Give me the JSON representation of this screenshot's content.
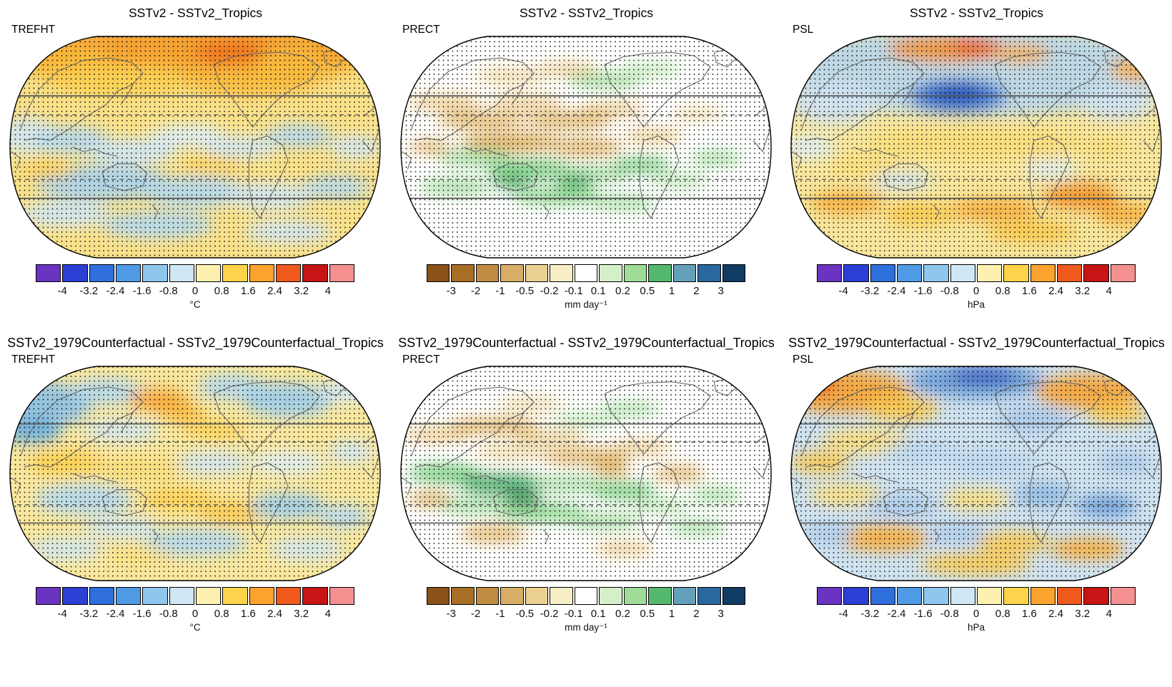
{
  "rows": [
    {
      "panels": [
        {
          "title": "SSTv2 - SSTv2_Tropics",
          "variable": "TREFHT",
          "colorbar": "temp"
        },
        {
          "title": "SSTv2 - SSTv2_Tropics",
          "variable": "PRECT",
          "colorbar": "precip"
        },
        {
          "title": "SSTv2 - SSTv2_Tropics",
          "variable": "PSL",
          "colorbar": "psl"
        }
      ]
    },
    {
      "panels": [
        {
          "title": "SSTv2_1979Counterfactual - SSTv2_1979Counterfactual_Tropics",
          "variable": "TREFHT",
          "colorbar": "temp"
        },
        {
          "title": "SSTv2_1979Counterfactual - SSTv2_1979Counterfactual_Tropics",
          "variable": "PRECT",
          "colorbar": "precip"
        },
        {
          "title": "SSTv2_1979Counterfactual - SSTv2_1979Counterfactual_Tropics",
          "variable": "PSL",
          "colorbar": "psl"
        }
      ]
    }
  ],
  "colorbars": {
    "temp": {
      "unit": "°C",
      "colors": [
        "#6a33c2",
        "#2b3fd4",
        "#2f6fdd",
        "#4f9be6",
        "#8ec6ee",
        "#cfe6f4",
        "#fdf0b0",
        "#fcd34a",
        "#fba32e",
        "#ef5a1c",
        "#c81414",
        "#f49090"
      ],
      "ticks": [
        "-4",
        "-3.2",
        "-2.4",
        "-1.6",
        "-0.8",
        "0",
        "0.8",
        "1.6",
        "2.4",
        "3.2",
        "4"
      ]
    },
    "precip": {
      "unit": "mm day⁻¹",
      "colors": [
        "#8a5118",
        "#a86e24",
        "#c08c42",
        "#d8ae66",
        "#ecd092",
        "#f8eec6",
        "#ffffff",
        "#d4f0c8",
        "#9edc98",
        "#54b96e",
        "#64a0ba",
        "#2a66a0",
        "#103c64"
      ],
      "ticks": [
        "-3",
        "-2",
        "-1",
        "-0.5",
        "-0.2",
        "-0.1",
        "0.1",
        "0.2",
        "0.5",
        "1",
        "2",
        "3"
      ]
    },
    "psl": {
      "unit": "hPa",
      "colors": [
        "#6a33c2",
        "#2b3fd4",
        "#2f6fdd",
        "#4f9be6",
        "#8ec6ee",
        "#cfe6f4",
        "#fdf0b0",
        "#fcd34a",
        "#fba32e",
        "#ef5a1c",
        "#c81414",
        "#f49090"
      ],
      "ticks": [
        "-4",
        "-3.2",
        "-2.4",
        "-1.6",
        "-0.8",
        "0",
        "0.8",
        "1.6",
        "2.4",
        "3.2",
        "4"
      ]
    }
  },
  "chart_data": {
    "type": "map",
    "figure": "2x3 panel global difference maps, Robinson-style projection, significance stippling (black dots), solid and dashed gray latitude reference lines",
    "panels": [
      {
        "row": 0,
        "col": 0,
        "title": "SSTv2 - SSTv2_Tropics",
        "variable": "TREFHT",
        "units": "°C",
        "levels": [
          -4,
          -3.2,
          -2.4,
          -1.6,
          -0.8,
          0,
          0.8,
          1.6,
          2.4,
          3.2,
          4
        ]
      },
      {
        "row": 0,
        "col": 1,
        "title": "SSTv2 - SSTv2_Tropics",
        "variable": "PRECT",
        "units": "mm day⁻¹",
        "levels": [
          -3,
          -2,
          -1,
          -0.5,
          -0.2,
          -0.1,
          0.1,
          0.2,
          0.5,
          1,
          2,
          3
        ]
      },
      {
        "row": 0,
        "col": 2,
        "title": "SSTv2 - SSTv2_Tropics",
        "variable": "PSL",
        "units": "hPa",
        "levels": [
          -4,
          -3.2,
          -2.4,
          -1.6,
          -0.8,
          0,
          0.8,
          1.6,
          2.4,
          3.2,
          4
        ]
      },
      {
        "row": 1,
        "col": 0,
        "title": "SSTv2_1979Counterfactual - SSTv2_1979Counterfactual_Tropics",
        "variable": "TREFHT",
        "units": "°C",
        "levels": [
          -4,
          -3.2,
          -2.4,
          -1.6,
          -0.8,
          0,
          0.8,
          1.6,
          2.4,
          3.2,
          4
        ]
      },
      {
        "row": 1,
        "col": 1,
        "title": "SSTv2_1979Counterfactual - SSTv2_1979Counterfactual_Tropics",
        "variable": "PRECT",
        "units": "mm day⁻¹",
        "levels": [
          -3,
          -2,
          -1,
          -0.5,
          -0.2,
          -0.1,
          0.1,
          0.2,
          0.5,
          1,
          2,
          3
        ]
      },
      {
        "row": 1,
        "col": 2,
        "title": "SSTv2_1979Counterfactual - SSTv2_1979Counterfactual_Tropics",
        "variable": "PSL",
        "units": "hPa",
        "levels": [
          -4,
          -3.2,
          -2.4,
          -1.6,
          -0.8,
          0,
          0.8,
          1.6,
          2.4,
          3.2,
          4
        ]
      }
    ]
  }
}
